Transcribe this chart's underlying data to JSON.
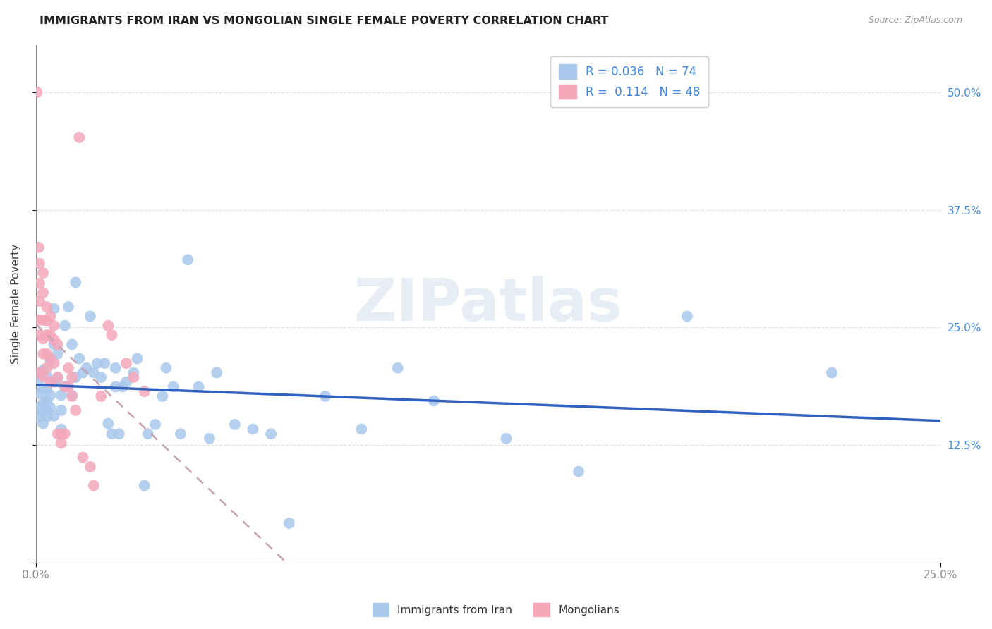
{
  "title": "IMMIGRANTS FROM IRAN VS MONGOLIAN SINGLE FEMALE POVERTY CORRELATION CHART",
  "source": "Source: ZipAtlas.com",
  "ylabel": "Single Female Poverty",
  "legend_iran_R": "0.036",
  "legend_iran_N": "74",
  "legend_mongo_R": "0.114",
  "legend_mongo_N": "48",
  "legend_label_iran": "Immigrants from Iran",
  "legend_label_mongo": "Mongolians",
  "color_iran": "#a8c8ec",
  "color_mongo": "#f4a7b9",
  "color_trend_iran": "#3060c0",
  "color_trend_mongo_dash": "#c8a0b0",
  "watermark_text": "ZIPatlas",
  "watermark_color": "#c8d8e8",
  "iran_x": [
    0.001,
    0.001,
    0.001,
    0.001,
    0.002,
    0.002,
    0.002,
    0.002,
    0.002,
    0.003,
    0.003,
    0.003,
    0.003,
    0.003,
    0.004,
    0.004,
    0.004,
    0.005,
    0.005,
    0.005,
    0.005,
    0.006,
    0.006,
    0.007,
    0.007,
    0.007,
    0.008,
    0.008,
    0.009,
    0.009,
    0.01,
    0.01,
    0.011,
    0.011,
    0.012,
    0.013,
    0.014,
    0.015,
    0.016,
    0.017,
    0.018,
    0.019,
    0.02,
    0.021,
    0.022,
    0.022,
    0.023,
    0.024,
    0.025,
    0.027,
    0.028,
    0.03,
    0.031,
    0.033,
    0.035,
    0.036,
    0.038,
    0.04,
    0.042,
    0.045,
    0.048,
    0.05,
    0.055,
    0.06,
    0.065,
    0.07,
    0.08,
    0.09,
    0.1,
    0.11,
    0.13,
    0.15,
    0.18,
    0.22
  ],
  "iran_y": [
    0.195,
    0.18,
    0.165,
    0.155,
    0.205,
    0.185,
    0.17,
    0.16,
    0.148,
    0.198,
    0.185,
    0.172,
    0.163,
    0.155,
    0.215,
    0.178,
    0.165,
    0.27,
    0.232,
    0.192,
    0.156,
    0.222,
    0.196,
    0.178,
    0.162,
    0.142,
    0.252,
    0.187,
    0.272,
    0.188,
    0.232,
    0.178,
    0.298,
    0.197,
    0.217,
    0.202,
    0.207,
    0.262,
    0.202,
    0.212,
    0.197,
    0.212,
    0.148,
    0.137,
    0.187,
    0.207,
    0.137,
    0.187,
    0.192,
    0.202,
    0.217,
    0.082,
    0.137,
    0.147,
    0.177,
    0.207,
    0.187,
    0.137,
    0.322,
    0.187,
    0.132,
    0.202,
    0.147,
    0.142,
    0.137,
    0.042,
    0.177,
    0.142,
    0.207,
    0.172,
    0.132,
    0.097,
    0.262,
    0.202
  ],
  "mongo_x": [
    0.0003,
    0.0008,
    0.001,
    0.001,
    0.001,
    0.001,
    0.001,
    0.001,
    0.002,
    0.002,
    0.002,
    0.002,
    0.002,
    0.002,
    0.003,
    0.003,
    0.003,
    0.003,
    0.003,
    0.004,
    0.004,
    0.004,
    0.004,
    0.005,
    0.005,
    0.005,
    0.006,
    0.006,
    0.006,
    0.007,
    0.007,
    0.008,
    0.008,
    0.009,
    0.009,
    0.01,
    0.01,
    0.011,
    0.012,
    0.013,
    0.015,
    0.016,
    0.018,
    0.02,
    0.021,
    0.025,
    0.027,
    0.03
  ],
  "mongo_y": [
    0.5,
    0.335,
    0.318,
    0.297,
    0.278,
    0.258,
    0.242,
    0.202,
    0.308,
    0.287,
    0.258,
    0.238,
    0.222,
    0.198,
    0.272,
    0.257,
    0.242,
    0.222,
    0.207,
    0.262,
    0.242,
    0.217,
    0.192,
    0.252,
    0.237,
    0.212,
    0.232,
    0.197,
    0.137,
    0.137,
    0.127,
    0.187,
    0.137,
    0.207,
    0.187,
    0.197,
    0.177,
    0.162,
    0.452,
    0.112,
    0.102,
    0.082,
    0.177,
    0.252,
    0.242,
    0.212,
    0.197,
    0.182
  ],
  "xlim": [
    0.0,
    0.25
  ],
  "ylim": [
    0.0,
    0.55
  ],
  "y_ticks": [
    0.0,
    0.125,
    0.25,
    0.375,
    0.5
  ],
  "y_tick_labels": [
    "",
    "12.5%",
    "25.0%",
    "37.5%",
    "50.0%"
  ],
  "x_tick_positions": [
    0.0,
    0.25
  ],
  "x_tick_labels": [
    "0.0%",
    "25.0%"
  ],
  "grid_color": "#d8d8d8",
  "background_color": "#ffffff",
  "title_color": "#222222",
  "source_color": "#999999",
  "ylabel_color": "#444444",
  "right_tick_color": "#4488dd",
  "bottom_tick_color": "#888888"
}
